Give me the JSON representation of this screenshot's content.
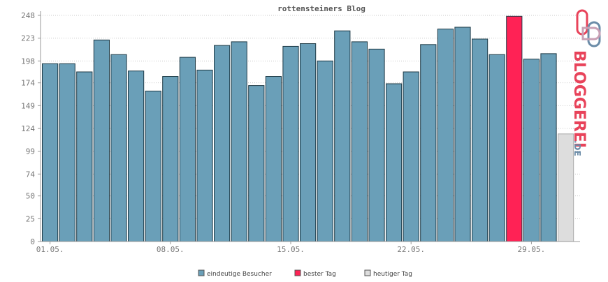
{
  "chart_data": {
    "type": "bar",
    "title": "rottensteiners Blog",
    "yticks": [
      "0",
      "25",
      "50",
      "74",
      "99",
      "124",
      "149",
      "174",
      "198",
      "223",
      "248"
    ],
    "ylim": [
      0,
      248
    ],
    "xtick_labels": [
      "01.05.",
      "08.05.",
      "15.05.",
      "22.05.",
      "29.05."
    ],
    "xtick_index": [
      0,
      7,
      14,
      21,
      28
    ],
    "grid": true,
    "legend_position": "bottom",
    "series": [
      {
        "name": "eindeutige Besucher",
        "color": "#6a9fb8",
        "values": [
          195,
          195,
          186,
          221,
          205,
          187,
          165,
          181,
          202,
          188,
          215,
          219,
          171,
          181,
          214,
          217,
          198,
          231,
          219,
          211,
          173,
          186,
          216,
          233,
          235,
          222,
          205,
          null,
          200,
          206,
          null
        ]
      },
      {
        "name": "bester Tag",
        "color": "#ff2255",
        "values": [
          null,
          null,
          null,
          null,
          null,
          null,
          null,
          null,
          null,
          null,
          null,
          null,
          null,
          null,
          null,
          null,
          null,
          null,
          null,
          null,
          null,
          null,
          null,
          null,
          null,
          null,
          null,
          247,
          null,
          null,
          null
        ]
      },
      {
        "name": "heutiger Tag",
        "color": "#dddddd",
        "values": [
          null,
          null,
          null,
          null,
          null,
          null,
          null,
          null,
          null,
          null,
          null,
          null,
          null,
          null,
          null,
          null,
          null,
          null,
          null,
          null,
          null,
          null,
          null,
          null,
          null,
          null,
          null,
          null,
          null,
          null,
          118
        ]
      }
    ]
  },
  "logo": {
    "text": "BLOGGEREI",
    "suffix": ".DE"
  }
}
